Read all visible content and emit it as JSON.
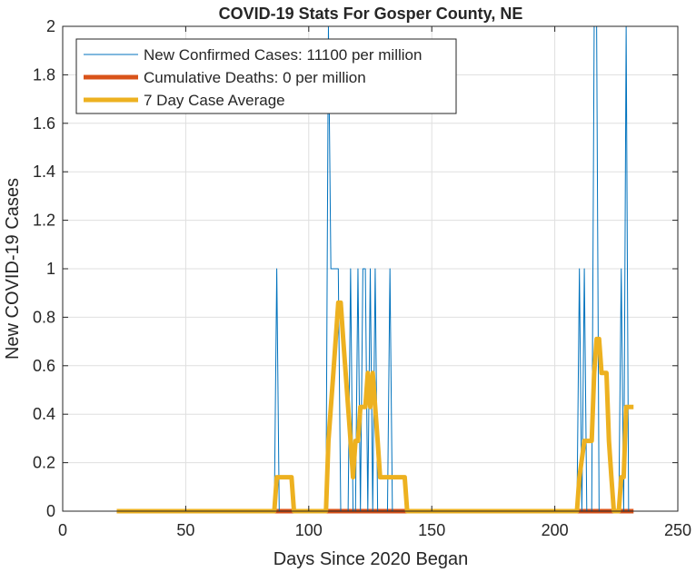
{
  "chart_data": {
    "type": "line",
    "title": "COVID-19 Stats For Gosper County, NE",
    "xlabel": "Days Since 2020 Began",
    "ylabel": "New COVID-19 Cases",
    "xlim": [
      0,
      250
    ],
    "ylim": [
      0,
      2
    ],
    "xticks": [
      0,
      50,
      100,
      150,
      200,
      250
    ],
    "yticks": [
      0,
      0.2,
      0.4,
      0.6,
      0.8,
      1,
      1.2,
      1.4,
      1.6,
      1.8,
      2
    ],
    "xtick_labels": [
      "0",
      "50",
      "100",
      "150",
      "200",
      "250"
    ],
    "ytick_labels": [
      "0",
      "0.2",
      "0.4",
      "0.6",
      "0.8",
      "1",
      "1.2",
      "1.4",
      "1.6",
      "1.8",
      "2"
    ],
    "grid": true,
    "legend": "top-left",
    "series": [
      {
        "name": "New Confirmed Cases: 11100 per million",
        "color": "#0072BD",
        "x": [
          22,
          86,
          87,
          88,
          89,
          107,
          108,
          109,
          110,
          112,
          113,
          114,
          115,
          116,
          117,
          118,
          119,
          120,
          121,
          122,
          123,
          124,
          125,
          126,
          127,
          128,
          132,
          133,
          134,
          209,
          210,
          211,
          212,
          213,
          214,
          215,
          216,
          217,
          218,
          219,
          224,
          225,
          226,
          227,
          228,
          229,
          230,
          231,
          232
        ],
        "y": [
          0,
          0,
          1,
          0,
          0,
          0,
          2,
          1,
          1,
          1,
          0,
          0,
          0,
          0,
          1,
          0,
          0,
          1,
          0,
          1,
          1,
          0,
          1,
          0,
          1,
          0,
          0,
          1,
          0,
          0,
          1,
          0,
          1,
          0,
          0,
          0,
          2,
          2,
          0,
          0,
          0,
          0,
          0,
          1,
          0,
          2,
          0,
          0,
          0
        ]
      },
      {
        "name": "Cumulative Deaths: 0 per million",
        "color": "#D95319",
        "x": [
          22,
          232
        ],
        "y": [
          0,
          0
        ]
      },
      {
        "name": "7 Day Case Average",
        "color": "#EDB120",
        "x": [
          22,
          86,
          87,
          88,
          93,
          94,
          107,
          108,
          109,
          110,
          112,
          113,
          114,
          115,
          116,
          117,
          118,
          119,
          120,
          121,
          122,
          123,
          124,
          125,
          126,
          127,
          128,
          129,
          130,
          132,
          133,
          134,
          139,
          140,
          209,
          210,
          212,
          213,
          215,
          216,
          217,
          218,
          219,
          220,
          221,
          222,
          223,
          224,
          225,
          226,
          227,
          228,
          229,
          230,
          231,
          232
        ],
        "y": [
          0,
          0,
          0.14,
          0.14,
          0.14,
          0,
          0,
          0.29,
          0.43,
          0.57,
          0.86,
          0.86,
          0.71,
          0.57,
          0.43,
          0.29,
          0.14,
          0.29,
          0.29,
          0.43,
          0.43,
          0.43,
          0.57,
          0.43,
          0.57,
          0.43,
          0.29,
          0.14,
          0.14,
          0.14,
          0.14,
          0.14,
          0.14,
          0,
          0,
          0.14,
          0.29,
          0.29,
          0.29,
          0.57,
          0.71,
          0.71,
          0.57,
          0.57,
          0.57,
          0.29,
          0.14,
          0,
          0,
          0,
          0.14,
          0.14,
          0.43,
          0.43,
          0.43,
          0.43
        ]
      }
    ]
  }
}
